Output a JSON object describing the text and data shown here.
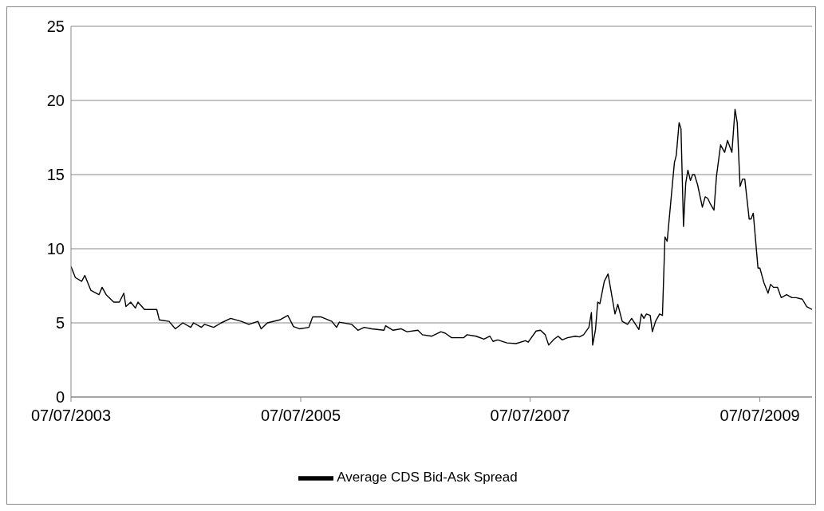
{
  "chart_data": {
    "type": "line",
    "xlim": [
      "2003-07-07",
      "2009-12-20"
    ],
    "xticks": [
      {
        "value": "2003-07-07",
        "label": "07/07/2003"
      },
      {
        "value": "2005-07-07",
        "label": "07/07/2005"
      },
      {
        "value": "2007-07-07",
        "label": "07/07/2007"
      },
      {
        "value": "2009-07-07",
        "label": "07/07/2009"
      }
    ],
    "ylim": [
      0,
      25
    ],
    "yticks": [
      0,
      5,
      10,
      15,
      20,
      25
    ],
    "grid": "y",
    "legend": "bottom",
    "marker": "none",
    "line_style": "solid",
    "x": [
      "2003-07-07",
      "2003-07-21",
      "2003-08-10",
      "2003-08-20",
      "2003-09-08",
      "2003-10-04",
      "2003-10-14",
      "2003-10-27",
      "2003-11-20",
      "2003-12-08",
      "2003-12-22",
      "2003-12-29",
      "2004-01-13",
      "2004-01-28",
      "2004-02-05",
      "2004-02-26",
      "2004-04-05",
      "2004-04-13",
      "2004-05-14",
      "2004-06-03",
      "2004-06-27",
      "2004-07-22",
      "2004-07-31",
      "2004-08-25",
      "2004-09-04",
      "2004-10-03",
      "2004-10-27",
      "2004-11-26",
      "2004-12-30",
      "2005-01-23",
      "2005-02-21",
      "2005-03-03",
      "2005-03-23",
      "2005-05-01",
      "2005-05-27",
      "2005-06-14",
      "2005-07-03",
      "2005-08-02",
      "2005-08-14",
      "2005-09-10",
      "2005-10-14",
      "2005-10-29",
      "2005-11-07",
      "2005-12-16",
      "2006-01-05",
      "2006-01-25",
      "2006-02-18",
      "2006-03-29",
      "2006-04-03",
      "2006-04-27",
      "2006-05-22",
      "2006-06-10",
      "2006-07-15",
      "2006-07-29",
      "2006-08-28",
      "2006-09-26",
      "2006-10-10",
      "2006-10-30",
      "2006-12-08",
      "2006-12-18",
      "2007-01-16",
      "2007-02-10",
      "2007-03-01",
      "2007-03-11",
      "2007-03-26",
      "2007-04-24",
      "2007-05-23",
      "2007-06-22",
      "2007-07-01",
      "2007-07-26",
      "2007-08-09",
      "2007-08-24",
      "2007-09-04",
      "2007-09-21",
      "2007-10-04",
      "2007-10-17",
      "2007-11-03",
      "2007-11-28",
      "2007-12-11",
      "2007-12-24",
      "2008-01-10",
      "2008-01-18",
      "2008-01-22",
      "2008-01-31",
      "2008-02-07",
      "2008-02-14",
      "2008-02-28",
      "2008-03-11",
      "2008-04-02",
      "2008-04-11",
      "2008-04-25",
      "2008-05-12",
      "2008-05-25",
      "2008-06-17",
      "2008-06-25",
      "2008-07-03",
      "2008-07-11",
      "2008-07-23",
      "2008-07-30",
      "2008-08-09",
      "2008-08-22",
      "2008-08-31",
      "2008-09-08",
      "2008-09-15",
      "2008-10-08",
      "2008-10-14",
      "2008-10-23",
      "2008-10-29",
      "2008-11-06",
      "2008-11-13",
      "2008-11-20",
      "2008-11-28",
      "2008-12-05",
      "2008-12-11",
      "2008-12-21",
      "2009-01-05",
      "2009-01-14",
      "2009-01-22",
      "2009-01-31",
      "2009-02-11",
      "2009-02-19",
      "2009-03-04",
      "2009-03-17",
      "2009-03-26",
      "2009-04-09",
      "2009-04-19",
      "2009-04-26",
      "2009-05-05",
      "2009-05-13",
      "2009-05-20",
      "2009-06-03",
      "2009-06-09",
      "2009-06-16",
      "2009-07-01",
      "2009-07-07",
      "2009-07-20",
      "2009-08-02",
      "2009-08-10",
      "2009-08-19",
      "2009-09-01",
      "2009-09-13",
      "2009-09-30",
      "2009-10-17",
      "2009-10-30",
      "2009-11-19",
      "2009-12-03",
      "2009-12-20"
    ],
    "series": [
      {
        "name": "Average CDS Bid-Ask Spread",
        "color": "#000000",
        "values": [
          8.8,
          8.05,
          7.8,
          8.2,
          7.2,
          6.9,
          7.4,
          6.9,
          6.4,
          6.4,
          7.0,
          6.1,
          6.4,
          6.0,
          6.4,
          5.9,
          5.9,
          5.2,
          5.1,
          4.6,
          5.0,
          4.7,
          5.0,
          4.7,
          4.9,
          4.7,
          5.0,
          5.3,
          5.1,
          4.9,
          5.1,
          4.6,
          5.0,
          5.2,
          5.5,
          4.75,
          4.6,
          4.7,
          5.4,
          5.4,
          5.1,
          4.7,
          5.05,
          4.9,
          4.5,
          4.7,
          4.6,
          4.5,
          4.8,
          4.5,
          4.6,
          4.4,
          4.5,
          4.2,
          4.1,
          4.4,
          4.3,
          4.0,
          4.0,
          4.2,
          4.1,
          3.9,
          4.1,
          3.75,
          3.85,
          3.65,
          3.6,
          3.8,
          3.7,
          4.45,
          4.5,
          4.2,
          3.5,
          3.9,
          4.1,
          3.85,
          4.0,
          4.1,
          4.05,
          4.2,
          4.7,
          5.7,
          3.5,
          4.55,
          6.4,
          6.3,
          7.8,
          8.3,
          5.6,
          6.25,
          5.1,
          4.9,
          5.3,
          4.55,
          5.6,
          5.3,
          5.6,
          5.5,
          4.4,
          5.1,
          5.6,
          5.5,
          10.8,
          10.5,
          15.8,
          16.3,
          18.5,
          18.1,
          11.5,
          14.4,
          15.3,
          14.6,
          15.0,
          15.0,
          14.3,
          12.8,
          13.5,
          13.4,
          13.0,
          12.6,
          14.9,
          17.0,
          16.5,
          17.3,
          16.5,
          19.4,
          18.5,
          14.2,
          14.7,
          14.7,
          12.0,
          12.0,
          12.4,
          8.7,
          8.7,
          7.7,
          7.0,
          7.6,
          7.4,
          7.4,
          6.7,
          6.9,
          6.7,
          6.7,
          6.6,
          6.1,
          5.9
        ]
      }
    ]
  }
}
